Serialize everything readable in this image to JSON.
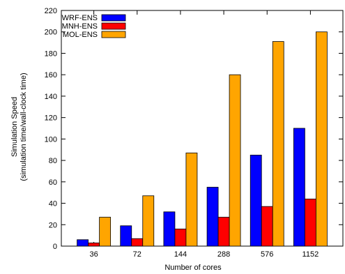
{
  "chart_data": {
    "type": "bar",
    "title": "",
    "xlabel": "Number of cores",
    "ylabel_line1": "Simulation Speed",
    "ylabel_line2": "(simulation time/wall-clock time)",
    "categories": [
      "36",
      "72",
      "144",
      "288",
      "576",
      "1152"
    ],
    "ylim": [
      0,
      220
    ],
    "yticks": [
      0,
      20,
      40,
      60,
      80,
      100,
      120,
      140,
      160,
      180,
      200,
      220
    ],
    "grid": false,
    "legend_position": "top-left",
    "series": [
      {
        "name": "WRF-ENS",
        "color": "#0000ff",
        "values": [
          6,
          19,
          32,
          55,
          85,
          110
        ]
      },
      {
        "name": "MNH-ENS",
        "color": "#ff0000",
        "values": [
          3,
          7,
          16,
          27,
          37,
          44
        ]
      },
      {
        "name": "MOL-ENS",
        "color": "#ffa500",
        "values": [
          27,
          47,
          87,
          160,
          191,
          200
        ]
      }
    ]
  }
}
